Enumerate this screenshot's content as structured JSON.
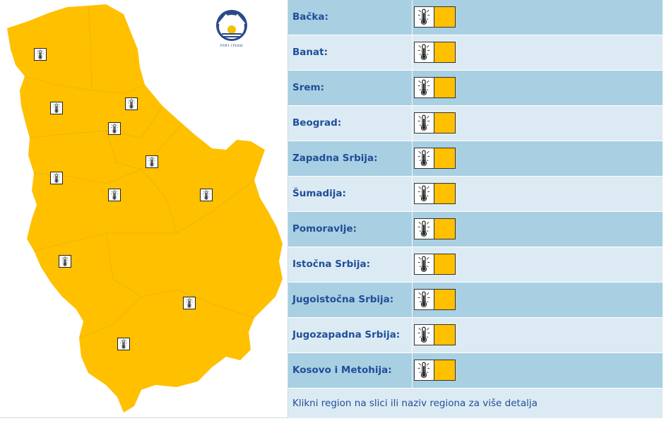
{
  "colors": {
    "warning_level": "#ffc000",
    "row_odd": "#a9cfe2",
    "row_even": "#dcebf3",
    "link_text": "#1f4e99"
  },
  "logo": {
    "caption": "РХМЗ СРБИЈЕ",
    "icon": "rhmz-logo-icon"
  },
  "map_icons": {
    "icon": "thermometer-icon"
  },
  "regions": [
    {
      "label": "Bačka:",
      "icon": "thermometer-icon",
      "level_color": "#ffc000"
    },
    {
      "label": "Banat:",
      "icon": "thermometer-icon",
      "level_color": "#ffc000"
    },
    {
      "label": "Srem:",
      "icon": "thermometer-icon",
      "level_color": "#ffc000"
    },
    {
      "label": "Beograd:",
      "icon": "thermometer-icon",
      "level_color": "#ffc000"
    },
    {
      "label": "Zapadna Srbija:",
      "icon": "thermometer-icon",
      "level_color": "#ffc000"
    },
    {
      "label": "Šumadija:",
      "icon": "thermometer-icon",
      "level_color": "#ffc000"
    },
    {
      "label": "Pomoravlje:",
      "icon": "thermometer-icon",
      "level_color": "#ffc000"
    },
    {
      "label": "Istočna Srbija:",
      "icon": "thermometer-icon",
      "level_color": "#ffc000"
    },
    {
      "label": "Jugoistočna Srbija:",
      "icon": "thermometer-icon",
      "level_color": "#ffc000"
    },
    {
      "label": "Jugozapadna Srbija:",
      "icon": "thermometer-icon",
      "level_color": "#ffc000"
    },
    {
      "label": "Kosovo i Metohija:",
      "icon": "thermometer-icon",
      "level_color": "#ffc000"
    }
  ],
  "footer": {
    "text": "Klikni region na slici ili naziv regiona za više detalja"
  }
}
